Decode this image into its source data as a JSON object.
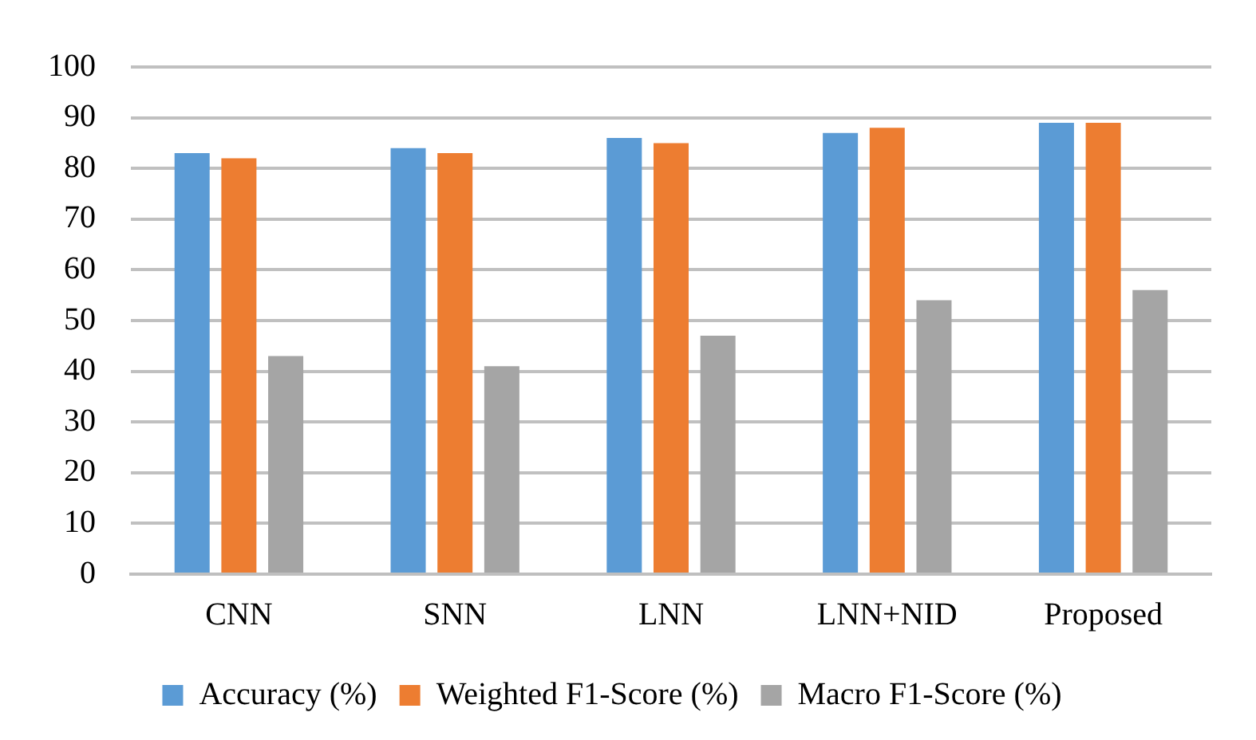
{
  "chart_data": {
    "type": "bar",
    "categories": [
      "CNN",
      "SNN",
      "LNN",
      "LNN+NID",
      "Proposed"
    ],
    "series": [
      {
        "name": "Accuracy (%)",
        "color": "#5b9bd5",
        "values": [
          83,
          84,
          86,
          87,
          89
        ]
      },
      {
        "name": "Weighted F1-Score (%)",
        "color": "#ed7d31",
        "values": [
          82,
          83,
          85,
          88,
          89
        ]
      },
      {
        "name": "Macro F1-Score (%)",
        "color": "#a5a5a5",
        "values": [
          43,
          41,
          47,
          54,
          56
        ]
      }
    ],
    "ylim": [
      0,
      100
    ],
    "yticks": [
      0,
      10,
      20,
      30,
      40,
      50,
      60,
      70,
      80,
      90,
      100
    ],
    "grid": "y",
    "legend": "bottom"
  }
}
